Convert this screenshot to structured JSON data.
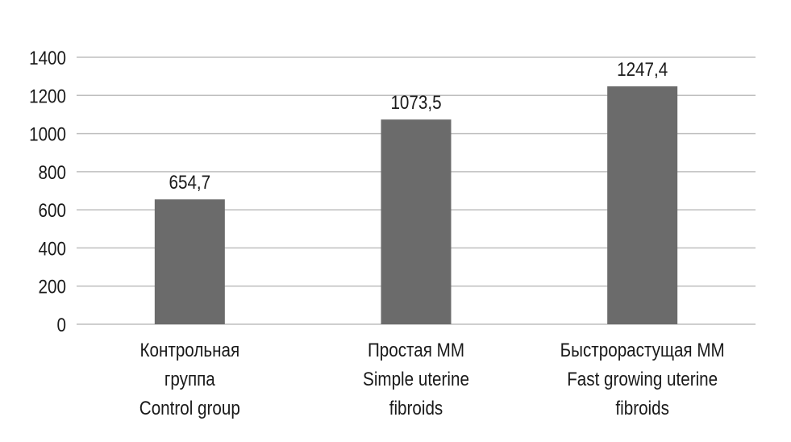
{
  "chart_data": {
    "type": "bar",
    "title": "",
    "xlabel": "",
    "ylabel": "",
    "ylim": [
      0,
      1400
    ],
    "yticks": [
      0,
      200,
      400,
      600,
      800,
      1000,
      1200,
      1400
    ],
    "grid": true,
    "categories": [
      [
        "Контрольная",
        "группа",
        "Control group"
      ],
      [
        "Простая ММ",
        "Simple uterine",
        "fibroids"
      ],
      [
        "Быстрорастущая ММ",
        "Fast growing uterine",
        "fibroids"
      ]
    ],
    "values": [
      654.7,
      1073.5,
      1247.4
    ],
    "data_labels": [
      "654,7",
      "1073,5",
      "1247,4"
    ],
    "bar_color": "#6b6b6b",
    "grid_color": "#bfbfbf"
  }
}
